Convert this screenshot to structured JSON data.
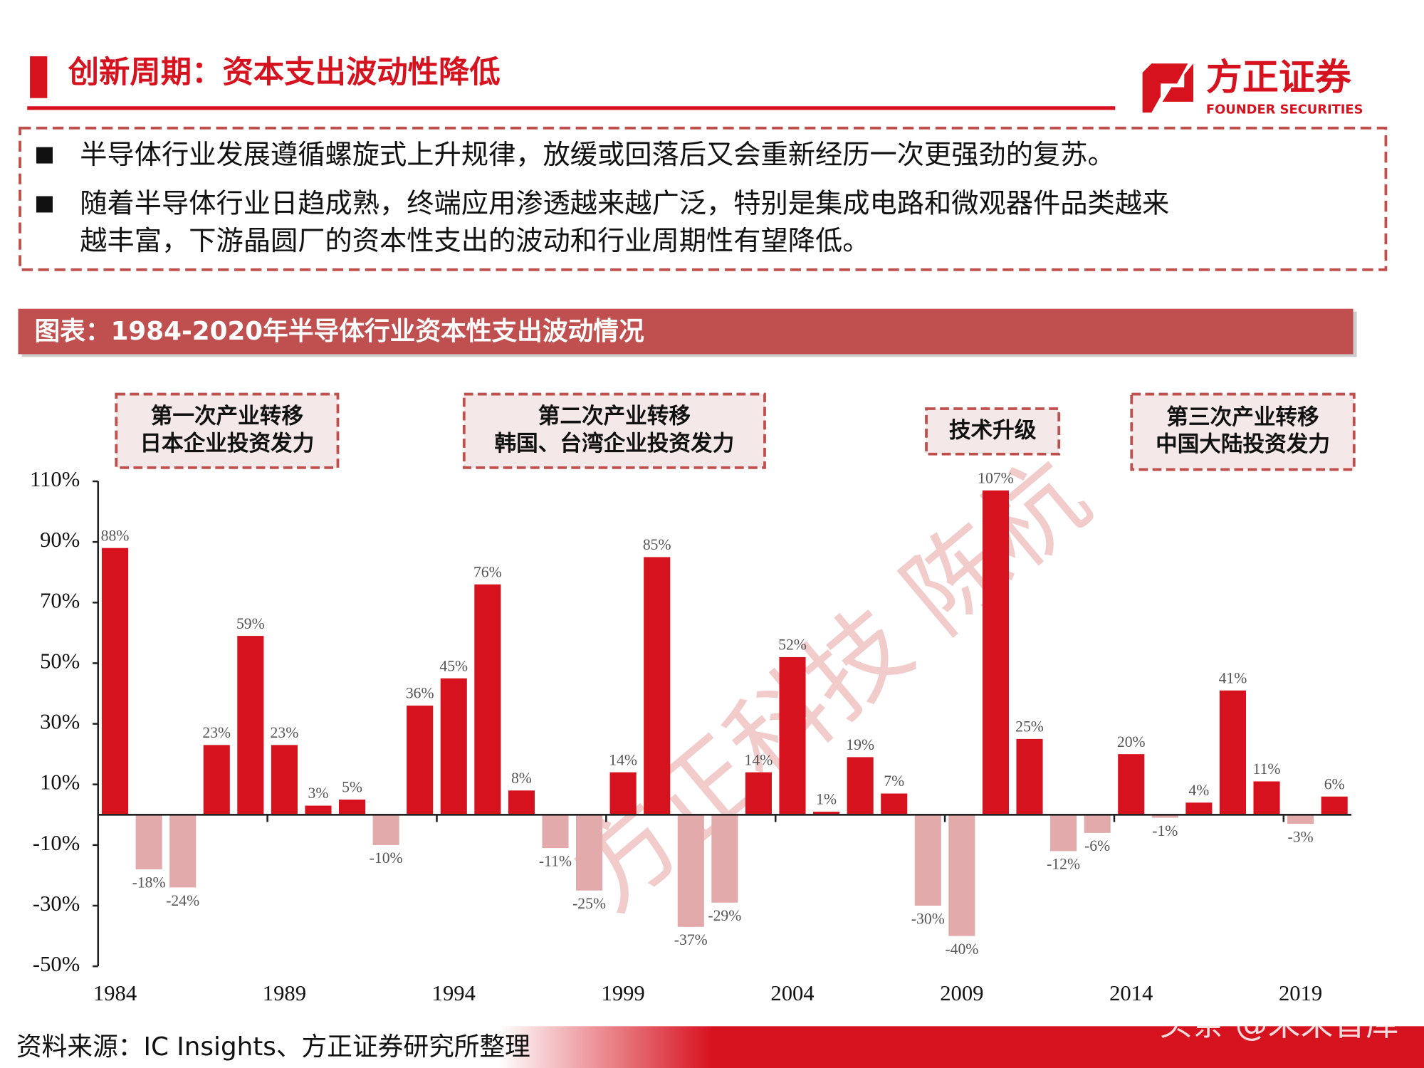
{
  "header": {
    "title": "创新周期：资本支出波动性降低",
    "logo_cn": "方正证券",
    "logo_en": "FOUNDER SECURITIES"
  },
  "bullets": [
    [
      "半导体行业发展遵循螺旋式上升规律，放缓或回落后又会重新经历一次更强劲的复苏。"
    ],
    [
      "随着半导体行业日趋成熟，终端应用渗透越来越广泛，特别是集成电路和微观器件品类越来",
      "越丰富，下游晶圆厂的资本性支出的波动和行业周期性有望降低。"
    ]
  ],
  "chart_data": {
    "type": "bar",
    "title": "图表：1984-2020年半导体行业资本性支出波动情况",
    "categories": [
      "1984",
      null,
      null,
      null,
      null,
      "1989",
      null,
      null,
      null,
      null,
      "1994",
      null,
      null,
      null,
      null,
      "1999",
      null,
      null,
      null,
      null,
      "2004",
      null,
      null,
      null,
      null,
      "2009",
      null,
      null,
      null,
      null,
      "2014",
      null,
      null,
      null,
      null,
      "2019",
      null
    ],
    "values": [
      88,
      -18,
      -24,
      23,
      59,
      23,
      3,
      5,
      -10,
      36,
      45,
      76,
      8,
      -11,
      -25,
      14,
      85,
      -37,
      -29,
      14,
      52,
      1,
      19,
      7,
      -30,
      -40,
      107,
      25,
      -12,
      -6,
      20,
      -1,
      4,
      41,
      11,
      -3,
      6
    ],
    "value_labels": [
      "88%",
      "-18%",
      "-24%",
      "23%",
      "59%",
      "23%",
      "3%",
      "5%",
      "-10%",
      "36%",
      "45%",
      "76%",
      "8%",
      "-11%",
      "-25%",
      "14%",
      "85%",
      "-37%",
      "-29%",
      "14%",
      "52%",
      "1%",
      "19%",
      "7%",
      "-30%",
      "-40%",
      "107%",
      "25%",
      "-12%",
      "-6%",
      "20%",
      "-1%",
      "4%",
      "41%",
      "11%",
      "-3%",
      "6%"
    ],
    "color": "#d7121f",
    "negative_color": "#e3aaab",
    "ylim": [
      -50,
      110
    ],
    "yticks": [
      {
        "value": -50,
        "label": "-50%"
      },
      {
        "value": -30,
        "label": "-30%"
      },
      {
        "value": -10,
        "label": "-10%"
      },
      {
        "value": 10,
        "label": "10%"
      },
      {
        "value": 30,
        "label": "30%"
      },
      {
        "value": 50,
        "label": "50%"
      },
      {
        "value": 70,
        "label": "70%"
      },
      {
        "value": 90,
        "label": "90%"
      },
      {
        "value": 110,
        "label": "110%"
      }
    ],
    "annotations": [
      {
        "lines": [
          "第一次产业转移",
          "日本企业投资发力"
        ]
      },
      {
        "lines": [
          "第二次产业转移",
          "韩国、台湾企业投资发力"
        ]
      },
      {
        "lines": [
          "技术升级"
        ]
      },
      {
        "lines": [
          "第三次产业转移",
          "中国大陆投资发力"
        ]
      }
    ],
    "watermark": "方正科技 陈杭"
  },
  "source": "资料来源：IC Insights、方正证券研究所整理",
  "footer_watermark": "头条 @未来智库"
}
